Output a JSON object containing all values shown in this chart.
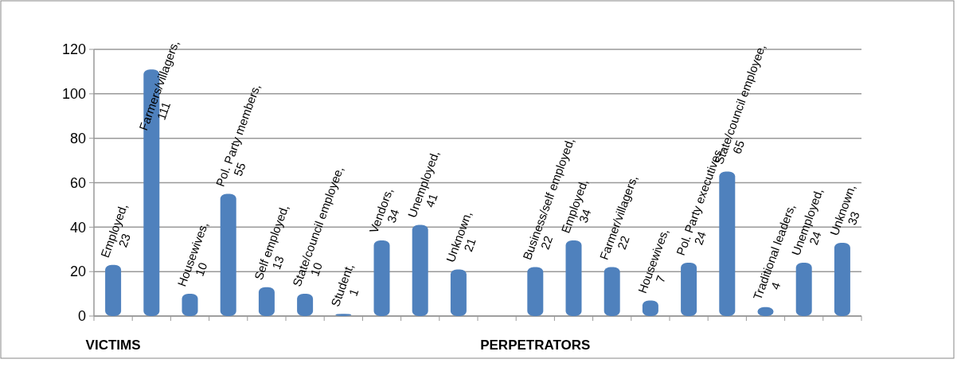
{
  "chart_data": {
    "type": "bar",
    "categories": [
      "VICTIMS",
      null,
      null,
      null,
      null,
      null,
      null,
      null,
      null,
      null,
      null,
      "PERPETRATORS",
      null,
      null,
      null,
      null,
      null,
      null,
      null,
      null
    ],
    "values": [
      23,
      111,
      10,
      55,
      13,
      10,
      1,
      34,
      41,
      21,
      null,
      22,
      34,
      22,
      7,
      24,
      65,
      4,
      24,
      33
    ],
    "value_labels": [
      "Employed, 23",
      "Farmers/villagers, 111",
      "Housewives, 10",
      "Pol. Party members, 55",
      "Self employed, 13",
      "State/council employee, 10",
      "Student, 1",
      "Vendors, 34",
      "Unemployed, 41",
      "Unknown, 21",
      null,
      "Business/self employed, 22",
      "Employed, 34",
      "Farmer/villagers, 22",
      "Housewives, 7",
      "Pol. Party executives, 24",
      "State/council employee, 65",
      "Traditional leaders, 4",
      "Unemployed, 24",
      "Unknown, 33"
    ],
    "color": "#4f81bd",
    "ylim": [
      0,
      120
    ],
    "yticks": [
      0,
      20,
      40,
      60,
      80,
      100,
      120
    ],
    "grid": "y"
  }
}
